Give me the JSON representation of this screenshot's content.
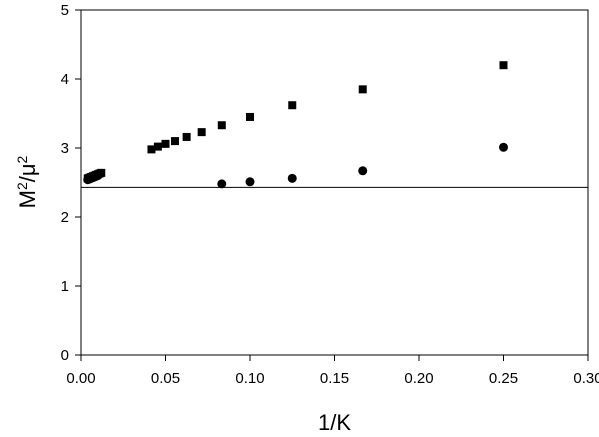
{
  "chart_data": {
    "type": "scatter",
    "title": "",
    "xlabel": "1/K",
    "ylabel_base": "M",
    "ylabel_base_sup": "2",
    "ylabel_sep": "/",
    "ylabel_den": "μ",
    "ylabel_den_sup": "2",
    "xlim": [
      0,
      0.3
    ],
    "ylim": [
      0,
      5
    ],
    "x_ticks": [
      0.0,
      0.05,
      0.1,
      0.15,
      0.2,
      0.25,
      0.3
    ],
    "x_tick_labels": [
      "0.00",
      "0.05",
      "0.10",
      "0.15",
      "0.20",
      "0.25",
      "0.30"
    ],
    "y_ticks": [
      0,
      1,
      2,
      3,
      4,
      5
    ],
    "y_tick_labels": [
      "0",
      "1",
      "2",
      "3",
      "4",
      "5"
    ],
    "grid": false,
    "reference_line_y": 2.43,
    "series": [
      {
        "marker": "square",
        "color": "#000000",
        "points": [
          {
            "x": 0.004,
            "y": 2.56
          },
          {
            "x": 0.005,
            "y": 2.57
          },
          {
            "x": 0.006,
            "y": 2.58
          },
          {
            "x": 0.007,
            "y": 2.59
          },
          {
            "x": 0.008,
            "y": 2.6
          },
          {
            "x": 0.009,
            "y": 2.61
          },
          {
            "x": 0.01,
            "y": 2.62
          },
          {
            "x": 0.011,
            "y": 2.63
          },
          {
            "x": 0.012,
            "y": 2.64
          },
          {
            "x": 0.0417,
            "y": 2.98
          },
          {
            "x": 0.0455,
            "y": 3.02
          },
          {
            "x": 0.05,
            "y": 3.06
          },
          {
            "x": 0.0556,
            "y": 3.1
          },
          {
            "x": 0.0625,
            "y": 3.16
          },
          {
            "x": 0.0714,
            "y": 3.23
          },
          {
            "x": 0.0833,
            "y": 3.33
          },
          {
            "x": 0.1,
            "y": 3.45
          },
          {
            "x": 0.125,
            "y": 3.62
          },
          {
            "x": 0.1667,
            "y": 3.85
          },
          {
            "x": 0.25,
            "y": 4.2
          }
        ]
      },
      {
        "marker": "circle",
        "color": "#000000",
        "points": [
          {
            "x": 0.004,
            "y": 2.54
          },
          {
            "x": 0.005,
            "y": 2.55
          },
          {
            "x": 0.006,
            "y": 2.56
          },
          {
            "x": 0.007,
            "y": 2.57
          },
          {
            "x": 0.008,
            "y": 2.58
          },
          {
            "x": 0.009,
            "y": 2.59
          },
          {
            "x": 0.01,
            "y": 2.6
          },
          {
            "x": 0.0833,
            "y": 2.48
          },
          {
            "x": 0.1,
            "y": 2.51
          },
          {
            "x": 0.125,
            "y": 2.56
          },
          {
            "x": 0.1667,
            "y": 2.67
          },
          {
            "x": 0.25,
            "y": 3.01
          }
        ]
      }
    ]
  }
}
